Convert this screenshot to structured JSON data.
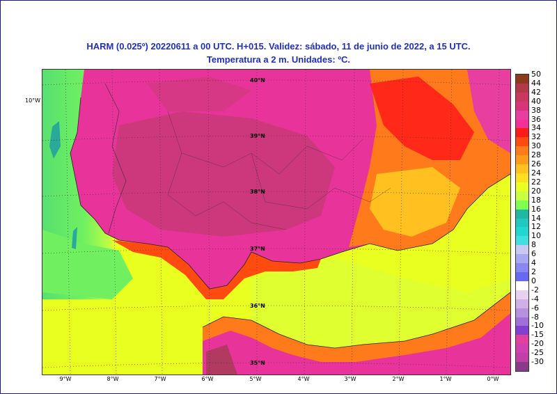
{
  "title_line1": "HARM (0.025º) 20220611 a 00 UTC. H+015. Validez: sábado, 11 de junio de 2022, a 15 UTC.",
  "title_line2": "Temperatura a 2 m. Unidades: ºC.",
  "lon_labels": [
    "9°W",
    "8°W",
    "7°W",
    "6°W",
    "5°W",
    "4°W",
    "3°W",
    "2°W",
    "1°W",
    "0°W"
  ],
  "lat_labels_inner": [
    "40°N",
    "39°N",
    "38°N",
    "37°N",
    "36°N",
    "35°N"
  ],
  "lat_label_outer": "10°W",
  "colorbar": {
    "labels": [
      "50",
      "44",
      "42",
      "40",
      "38",
      "36",
      "34",
      "32",
      "30",
      "28",
      "26",
      "24",
      "22",
      "20",
      "18",
      "16",
      "14",
      "12",
      "10",
      "8",
      "6",
      "4",
      "2",
      "0",
      "-2",
      "-4",
      "-6",
      "-8",
      "-10",
      "-15",
      "-20",
      "-25",
      "-30"
    ],
    "colors": [
      "#8b3a1c",
      "#b23a48",
      "#c8385f",
      "#d8347a",
      "#e83ea0",
      "#f2309a",
      "#ff1a1a",
      "#ff4a10",
      "#ff7a1a",
      "#ff9a1a",
      "#ffc020",
      "#ffe020",
      "#e8ff20",
      "#c8ff40",
      "#80ff50",
      "#20b8a0",
      "#20c8c0",
      "#20d8d0",
      "#40e0e0",
      "#c8c8f0",
      "#a8a8f0",
      "#8888f0",
      "#6868f0",
      "#ffffff",
      "#e8d0f0",
      "#d0b0e8",
      "#b890e0",
      "#a070d8",
      "#8040d0",
      "#e040a0",
      "#d040b0",
      "#c040a8",
      "#8a3a8a"
    ]
  }
}
